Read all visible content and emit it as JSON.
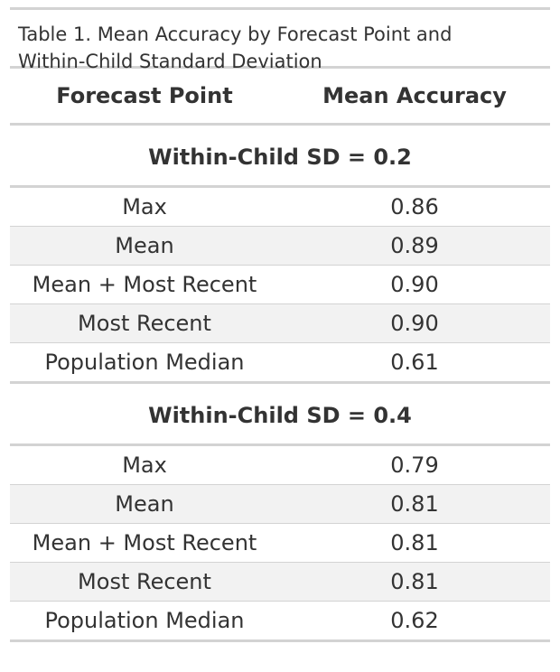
{
  "caption": {
    "line1": "Table 1. Mean Accuracy by Forecast Point and",
    "line2": "Within-Child Standard Deviation"
  },
  "columns": [
    "Forecast Point",
    "Mean Accuracy"
  ],
  "groups": [
    {
      "label": "Within-Child SD = 0.2",
      "rows": [
        {
          "point": "Max",
          "accuracy": "0.86"
        },
        {
          "point": "Mean",
          "accuracy": "0.89"
        },
        {
          "point": "Mean + Most Recent",
          "accuracy": "0.90"
        },
        {
          "point": "Most Recent",
          "accuracy": "0.90"
        },
        {
          "point": "Population Median",
          "accuracy": "0.61"
        }
      ]
    },
    {
      "label": "Within-Child SD = 0.4",
      "rows": [
        {
          "point": "Max",
          "accuracy": "0.79"
        },
        {
          "point": "Mean",
          "accuracy": "0.81"
        },
        {
          "point": "Mean + Most Recent",
          "accuracy": "0.81"
        },
        {
          "point": "Most Recent",
          "accuracy": "0.81"
        },
        {
          "point": "Population Median",
          "accuracy": "0.62"
        }
      ]
    }
  ]
}
